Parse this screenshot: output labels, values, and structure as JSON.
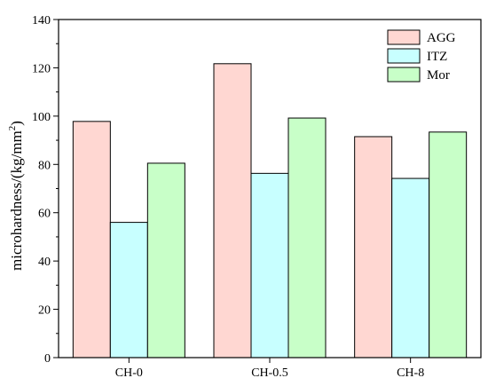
{
  "chart_data": {
    "type": "bar",
    "categories": [
      "CH-0",
      "CH-0.5",
      "CH-8"
    ],
    "series": [
      {
        "name": "AGG",
        "color": "#ffd7d2",
        "values": [
          97.8,
          121.7,
          91.5
        ]
      },
      {
        "name": "ITZ",
        "color": "#c8ffff",
        "values": [
          56.0,
          76.3,
          74.2
        ]
      },
      {
        "name": "Mor",
        "color": "#c8ffc8",
        "values": [
          80.5,
          99.2,
          93.4
        ]
      }
    ],
    "title": "",
    "xlabel": "",
    "ylabel": "microhardness/(kg/mm",
    "ylabel_sup": "2",
    "ylabel_end": ")",
    "ylim": [
      0,
      140
    ],
    "yticks": [
      0,
      20,
      40,
      60,
      80,
      100,
      120,
      140
    ],
    "grid": false,
    "legend_position": "top-right"
  }
}
